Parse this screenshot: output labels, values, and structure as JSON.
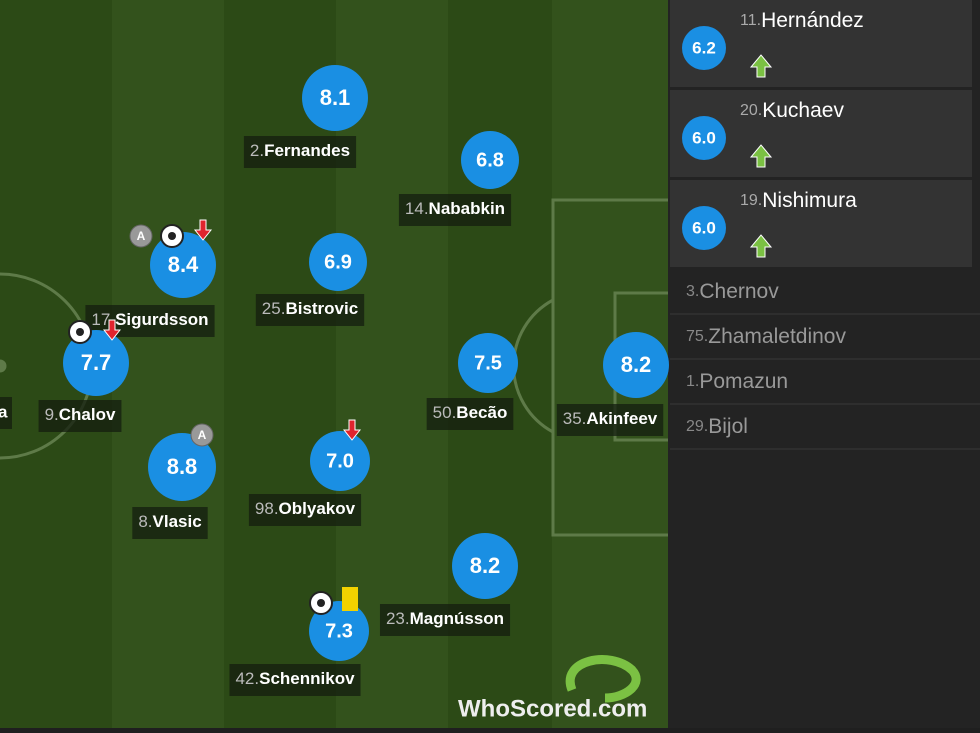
{
  "players": [
    {
      "number": "2.",
      "name": "Fernandes",
      "rating": "8.1"
    },
    {
      "number": "14.",
      "name": "Nababkin",
      "rating": "6.8"
    },
    {
      "number": "17.",
      "name": "Sigurdsson",
      "rating": "8.4"
    },
    {
      "number": "25.",
      "name": "Bistrovic",
      "rating": "6.9"
    },
    {
      "number": "9.",
      "name": "Chalov",
      "rating": "7.7"
    },
    {
      "number": "50.",
      "name": "Becão",
      "rating": "7.5"
    },
    {
      "number": "35.",
      "name": "Akinfeev",
      "rating": "8.2"
    },
    {
      "number": "8.",
      "name": "Vlasic",
      "rating": "8.8"
    },
    {
      "number": "98.",
      "name": "Oblyakov",
      "rating": "7.0"
    },
    {
      "number": "23.",
      "name": "Magnússon",
      "rating": "8.2"
    },
    {
      "number": "42.",
      "name": "Schennikov",
      "rating": "7.3"
    }
  ],
  "partial_player": "a",
  "captain_badge": "A",
  "substitutes": [
    {
      "number": "11.",
      "name": "Hernández",
      "rating": "6.2"
    },
    {
      "number": "20.",
      "name": "Kuchaev",
      "rating": "6.0"
    },
    {
      "number": "19.",
      "name": "Nishimura",
      "rating": "6.0"
    },
    {
      "number": "3.",
      "name": "Chernov"
    },
    {
      "number": "75.",
      "name": "Zhamaletdinov"
    },
    {
      "number": "1.",
      "name": "Pomazun"
    },
    {
      "number": "29.",
      "name": "Bijol"
    }
  ],
  "watermark": "WhoScored.com"
}
